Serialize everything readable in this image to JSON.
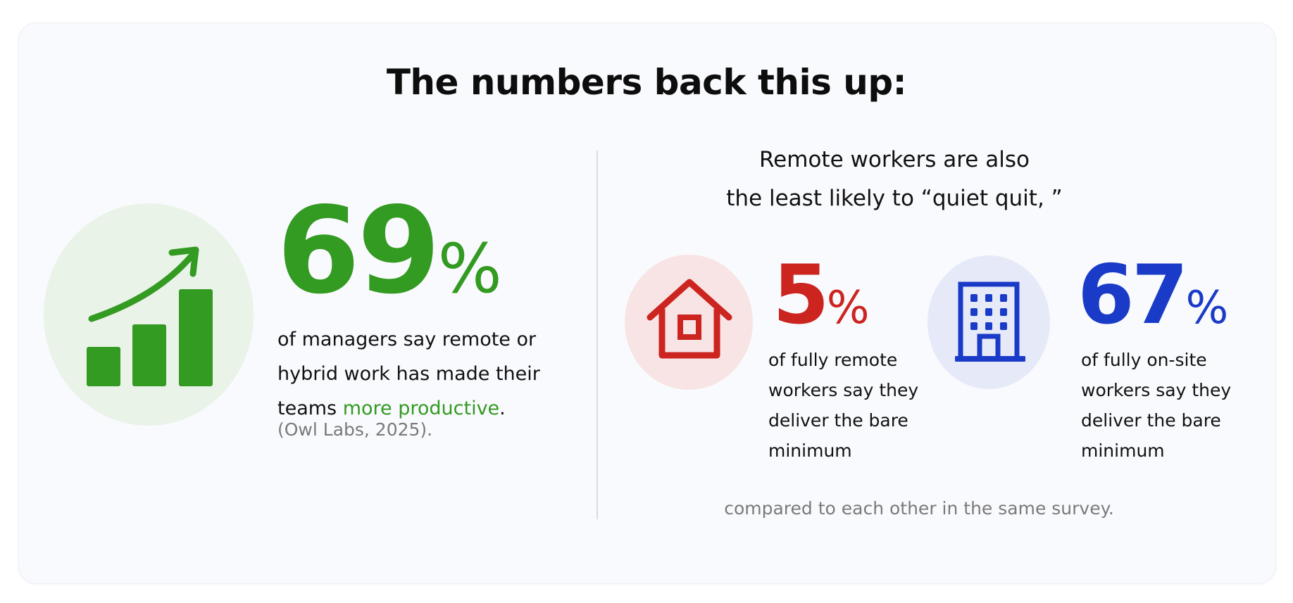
{
  "title": "The numbers back this up:",
  "left": {
    "icon": "bar-chart-growth-icon",
    "stat_value": "69",
    "stat_unit": "%",
    "text_before": "of managers say remote or hybrid work has made their teams ",
    "text_highlight": "more productive",
    "text_after": ".",
    "citation": "(Owl Labs, 2025).",
    "accent_color": "#339a22"
  },
  "right": {
    "heading_line1": "Remote workers are also",
    "heading_line2": "the least likely to “quiet quit, ”",
    "stats": [
      {
        "icon": "house-icon",
        "value": "5",
        "unit": "%",
        "description": "of fully remote workers say they deliver the bare minimum",
        "color": "#cc2520"
      },
      {
        "icon": "office-building-icon",
        "value": "67",
        "unit": "%",
        "description": "of fully on-site workers say they deliver the bare minimum",
        "color": "#1a3bc8"
      }
    ],
    "footnote": "compared to each other in the same survey."
  }
}
